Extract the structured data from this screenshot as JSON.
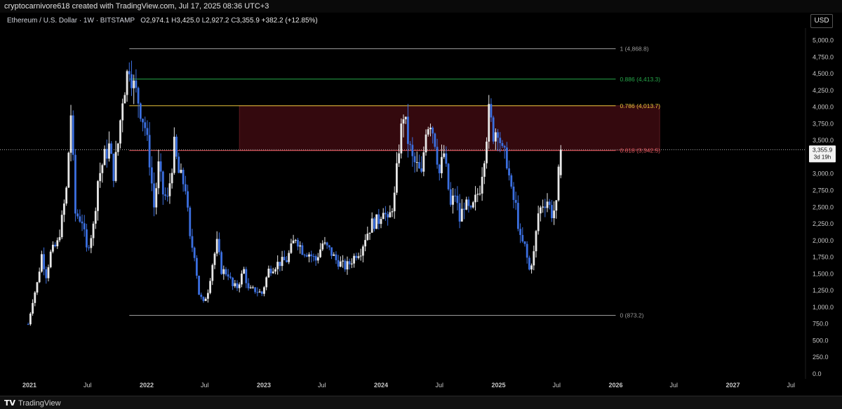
{
  "header": {
    "credit": "cryptocarnivore618 created with TradingView.com, Jul 17, 2025 08:36 UTC+3"
  },
  "symbol_bar": {
    "pair": "Ethereum / U.S. Dollar · 1W · BITSTAMP",
    "o_label": "O",
    "o_value": "2,974.1",
    "h_label": "H",
    "h_value": "3,425.0",
    "l_label": "L",
    "l_value": "2,927.2",
    "c_label": "C",
    "c_value": "3,355.9",
    "change": "+382.2 (+12.85%)"
  },
  "currency_button": "USD",
  "footer": {
    "logo_glyph": "TV",
    "brand": "TradingView"
  },
  "colors": {
    "background": "#000000",
    "bull": "#e8e8e8",
    "bear": "#3b6fe0",
    "zone_fill": "#3a0a0f",
    "fib_1": "#9a9a9a",
    "fib_886": "#26a84a",
    "fib_786": "#e8c33a",
    "fib_618": "#d9545a",
    "fib_0": "#9a9a9a",
    "price_line": "#b0b0b0"
  },
  "chart_data": {
    "type": "candlestick",
    "title": "Ethereum / U.S. Dollar · 1W · BITSTAMP",
    "xlabel": "",
    "ylabel": "",
    "ylim": [
      0,
      5100
    ],
    "x_tick_labels": [
      "2021",
      "Jul",
      "2022",
      "Jul",
      "2023",
      "Jul",
      "2024",
      "Jul",
      "2025",
      "Jul",
      "2026",
      "Jul",
      "2027",
      "Jul"
    ],
    "x_tick_dates": [
      "2021-01-01",
      "2021-07-01",
      "2022-01-01",
      "2022-07-01",
      "2023-01-01",
      "2023-07-01",
      "2024-01-01",
      "2024-07-01",
      "2025-01-01",
      "2025-07-01",
      "2026-01-01",
      "2026-07-01",
      "2027-01-01",
      "2027-07-01"
    ],
    "y_ticks": [
      0,
      250,
      500,
      750,
      1000,
      1250,
      1500,
      1750,
      2000,
      2250,
      2500,
      2750,
      3000,
      3250,
      3500,
      3750,
      4000,
      4250,
      4500,
      4750,
      5000
    ],
    "y_tick_labels": [
      "0.0",
      "250.0",
      "500.0",
      "750.0",
      "1,000.0",
      "1,250.0",
      "1,500.0",
      "1,750.0",
      "2,000.0",
      "2,250.0",
      "2,500.0",
      "2,750.0",
      "3,000.0",
      "3,250.0",
      "3,500.0",
      "3,750.0",
      "4,000.0",
      "4,250.0",
      "4,500.0",
      "4,750.0",
      "5,000.0"
    ],
    "price_path": [
      [
        "2020-12-28",
        740
      ],
      [
        "2021-01-11",
        1100
      ],
      [
        "2021-01-25",
        1350
      ],
      [
        "2021-02-08",
        1780
      ],
      [
        "2021-02-22",
        1480
      ],
      [
        "2021-03-08",
        1800
      ],
      [
        "2021-03-29",
        1950
      ],
      [
        "2021-04-12",
        2300
      ],
      [
        "2021-04-26",
        2750
      ],
      [
        "2021-05-10",
        3900
      ],
      [
        "2021-05-24",
        2400
      ],
      [
        "2021-06-14",
        2300
      ],
      [
        "2021-06-28",
        1850
      ],
      [
        "2021-07-19",
        2200
      ],
      [
        "2021-08-02",
        2900
      ],
      [
        "2021-08-23",
        3250
      ],
      [
        "2021-09-06",
        3400
      ],
      [
        "2021-09-20",
        3000
      ],
      [
        "2021-10-04",
        3450
      ],
      [
        "2021-10-18",
        4150
      ],
      [
        "2021-11-08",
        4650
      ],
      [
        "2021-11-22",
        4300
      ],
      [
        "2021-12-06",
        4100
      ],
      [
        "2021-12-27",
        3700
      ],
      [
        "2022-01-10",
        3200
      ],
      [
        "2022-01-24",
        2500
      ],
      [
        "2022-02-07",
        3100
      ],
      [
        "2022-02-21",
        2700
      ],
      [
        "2022-03-07",
        2600
      ],
      [
        "2022-03-28",
        3400
      ],
      [
        "2022-04-11",
        3000
      ],
      [
        "2022-05-02",
        2800
      ],
      [
        "2022-05-16",
        2000
      ],
      [
        "2022-05-30",
        1800
      ],
      [
        "2022-06-13",
        1200
      ],
      [
        "2022-06-27",
        1050
      ],
      [
        "2022-07-11",
        1250
      ],
      [
        "2022-07-25",
        1650
      ],
      [
        "2022-08-08",
        1950
      ],
      [
        "2022-08-22",
        1550
      ],
      [
        "2022-09-12",
        1500
      ],
      [
        "2022-09-26",
        1300
      ],
      [
        "2022-10-10",
        1300
      ],
      [
        "2022-10-31",
        1550
      ],
      [
        "2022-11-14",
        1250
      ],
      [
        "2022-12-05",
        1250
      ],
      [
        "2022-12-26",
        1200
      ],
      [
        "2023-01-16",
        1550
      ],
      [
        "2023-02-13",
        1650
      ],
      [
        "2023-03-13",
        1700
      ],
      [
        "2023-04-10",
        2050
      ],
      [
        "2023-05-01",
        1850
      ],
      [
        "2023-05-22",
        1800
      ],
      [
        "2023-06-12",
        1700
      ],
      [
        "2023-07-03",
        1950
      ],
      [
        "2023-07-24",
        1850
      ],
      [
        "2023-08-14",
        1700
      ],
      [
        "2023-08-28",
        1650
      ],
      [
        "2023-09-11",
        1600
      ],
      [
        "2023-09-25",
        1650
      ],
      [
        "2023-10-16",
        1800
      ],
      [
        "2023-10-30",
        1850
      ],
      [
        "2023-11-13",
        2050
      ],
      [
        "2023-12-04",
        2250
      ],
      [
        "2023-12-25",
        2300
      ],
      [
        "2024-01-08",
        2500
      ],
      [
        "2024-01-22",
        2250
      ],
      [
        "2024-02-12",
        2650
      ],
      [
        "2024-02-26",
        3400
      ],
      [
        "2024-03-11",
        3900
      ],
      [
        "2024-03-25",
        3500
      ],
      [
        "2024-04-08",
        3200
      ],
      [
        "2024-04-22",
        3100
      ],
      [
        "2024-05-06",
        2950
      ],
      [
        "2024-05-20",
        3700
      ],
      [
        "2024-06-03",
        3800
      ],
      [
        "2024-06-17",
        3500
      ],
      [
        "2024-07-01",
        3000
      ],
      [
        "2024-07-15",
        3300
      ],
      [
        "2024-08-05",
        2500
      ],
      [
        "2024-08-19",
        2700
      ],
      [
        "2024-09-02",
        2300
      ],
      [
        "2024-09-16",
        2550
      ],
      [
        "2024-10-07",
        2400
      ],
      [
        "2024-10-21",
        2600
      ],
      [
        "2024-11-04",
        2800
      ],
      [
        "2024-11-18",
        3300
      ],
      [
        "2024-12-02",
        3900
      ],
      [
        "2024-12-16",
        3600
      ],
      [
        "2024-12-30",
        3700
      ],
      [
        "2025-01-13",
        3300
      ],
      [
        "2025-01-27",
        3200
      ],
      [
        "2025-02-10",
        2700
      ],
      [
        "2025-02-24",
        2500
      ],
      [
        "2025-03-10",
        2000
      ],
      [
        "2025-03-24",
        1900
      ],
      [
        "2025-04-07",
        1550
      ],
      [
        "2025-04-21",
        1800
      ],
      [
        "2025-05-05",
        2400
      ],
      [
        "2025-05-19",
        2550
      ],
      [
        "2025-06-02",
        2600
      ],
      [
        "2025-06-16",
        2400
      ],
      [
        "2025-06-30",
        2500
      ],
      [
        "2025-07-07",
        2974.1
      ],
      [
        "2025-07-14",
        3355.9
      ]
    ],
    "last_candle": {
      "open": 2974.1,
      "high": 3425.0,
      "low": 2927.2,
      "close": 3355.9
    },
    "fib_levels": [
      {
        "ratio": "1",
        "value": 4868.8,
        "label": "1 (4,868.8)",
        "color": "#9a9a9a"
      },
      {
        "ratio": "0.886",
        "value": 4413.3,
        "label": "0.886 (4,413.3)",
        "color": "#26a84a"
      },
      {
        "ratio": "0.786",
        "value": 4013.7,
        "label": "0.786 (4,013.7)",
        "color": "#e8c33a"
      },
      {
        "ratio": "0.618",
        "value": 3342.5,
        "label": "0.618 (3,342.5)",
        "color": "#d9545a"
      },
      {
        "ratio": "0",
        "value": 873.2,
        "label": "0 (873.2)",
        "color": "#9a9a9a"
      }
    ],
    "fib_start_date": "2021-11-08",
    "fib_end_date": "2026-01-01",
    "resistance_zone": {
      "from_date": "2022-10-17",
      "to_date": "2026-05-18",
      "low": 3342.5,
      "high": 4013.7
    },
    "current_price": {
      "value": 3355.9,
      "label": "3,355.9",
      "countdown": "3d 19h"
    },
    "grid": false,
    "legend": "none"
  }
}
